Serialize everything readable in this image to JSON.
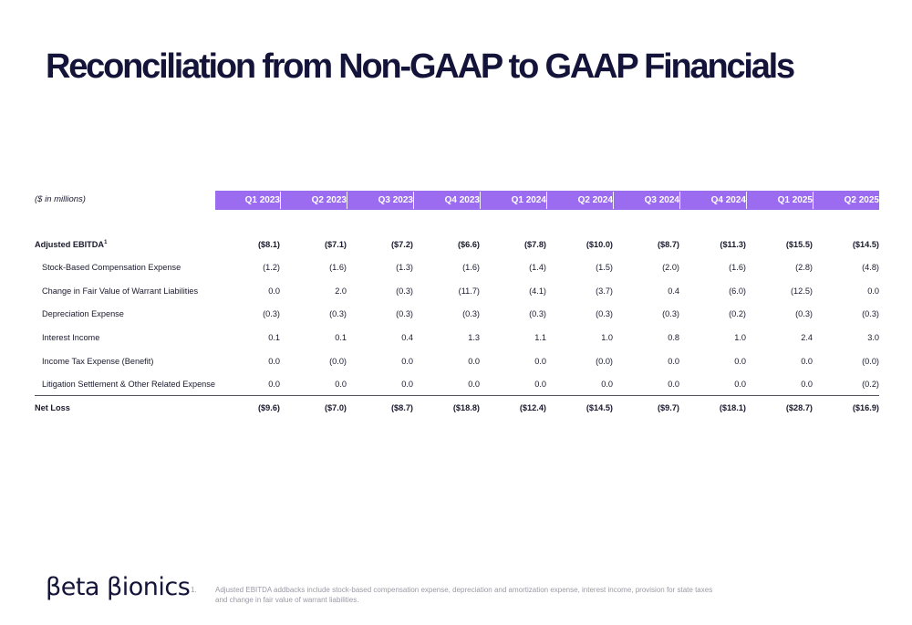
{
  "title": "Reconciliation from Non-GAAP to GAAP Financials",
  "units_label": "($ in millions)",
  "columns": [
    "Q1 2023",
    "Q2 2023",
    "Q3 2023",
    "Q4 2023",
    "Q1 2024",
    "Q2 2024",
    "Q3 2024",
    "Q4 2024",
    "Q1 2025",
    "Q2 2025"
  ],
  "header_color": "#9b6cf0",
  "rows": [
    {
      "label": "Adjusted EBITDA",
      "footnote_mark": "1",
      "bold": true,
      "indent": false,
      "values": [
        "($8.1)",
        "($7.1)",
        "($7.2)",
        "($6.6)",
        "($7.8)",
        "($10.0)",
        "($8.7)",
        "($11.3)",
        "($15.5)",
        "($14.5)"
      ]
    },
    {
      "label": "Stock-Based Compensation Expense",
      "bold": false,
      "indent": true,
      "values": [
        "(1.2)",
        "(1.6)",
        "(1.3)",
        "(1.6)",
        "(1.4)",
        "(1.5)",
        "(2.0)",
        "(1.6)",
        "(2.8)",
        "(4.8)"
      ]
    },
    {
      "label": "Change in Fair Value of Warrant Liabilities",
      "bold": false,
      "indent": true,
      "values": [
        "0.0",
        "2.0",
        "(0.3)",
        "(11.7)",
        "(4.1)",
        "(3.7)",
        "0.4",
        "(6.0)",
        "(12.5)",
        "0.0"
      ]
    },
    {
      "label": "Depreciation Expense",
      "bold": false,
      "indent": true,
      "values": [
        "(0.3)",
        "(0.3)",
        "(0.3)",
        "(0.3)",
        "(0.3)",
        "(0.3)",
        "(0.3)",
        "(0.2)",
        "(0.3)",
        "(0.3)"
      ]
    },
    {
      "label": "Interest Income",
      "bold": false,
      "indent": true,
      "values": [
        "0.1",
        "0.1",
        "0.4",
        "1.3",
        "1.1",
        "1.0",
        "0.8",
        "1.0",
        "2.4",
        "3.0"
      ]
    },
    {
      "label": "Income Tax Expense (Benefit)",
      "bold": false,
      "indent": true,
      "values": [
        "0.0",
        "(0.0)",
        "0.0",
        "0.0",
        "0.0",
        "(0.0)",
        "0.0",
        "0.0",
        "0.0",
        "(0.0)"
      ]
    },
    {
      "label": "Litigation Settlement & Other Related Expense",
      "bold": false,
      "indent": true,
      "values": [
        "0.0",
        "0.0",
        "0.0",
        "0.0",
        "0.0",
        "0.0",
        "0.0",
        "0.0",
        "0.0",
        "(0.2)"
      ]
    },
    {
      "label": "Net Loss",
      "bold": true,
      "indent": false,
      "values": [
        "($9.6)",
        "($7.0)",
        "($8.7)",
        "($18.8)",
        "($12.4)",
        "($14.5)",
        "($9.7)",
        "($18.1)",
        "($28.7)",
        "($16.9)"
      ]
    }
  ],
  "logo_text": "βeta βionics",
  "footnote": {
    "number": "1.",
    "text": "Adjusted EBITDA addbacks include stock-based compensation expense, depreciation and amortization expense, interest income, provision for state taxes and change in fair value of warrant liabilities."
  }
}
